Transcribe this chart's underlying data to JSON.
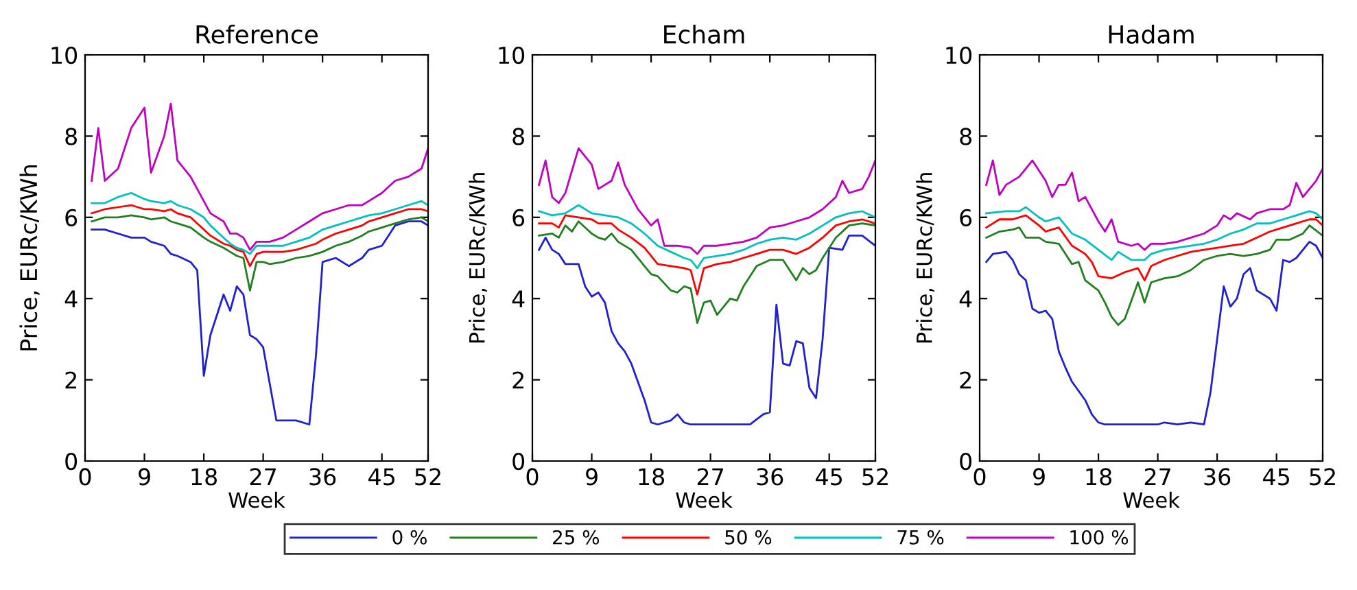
{
  "chart_data": [
    {
      "type": "line",
      "title": "Reference",
      "xlabel": "Week",
      "ylabel": "Price, EURc/KWh",
      "xlim": [
        0,
        52
      ],
      "xticks": [
        0,
        9,
        18,
        27,
        36,
        45,
        52
      ],
      "ylim": [
        0,
        10
      ],
      "yticks": [
        0,
        2,
        4,
        6,
        8,
        10
      ],
      "grid": false,
      "legend": "bottom",
      "series": [
        {
          "name": "0 %",
          "color": "#2020d0",
          "x": [
            1,
            3,
            5,
            7,
            9,
            10,
            12,
            13,
            14,
            16,
            17,
            18,
            19,
            21,
            22,
            23,
            24,
            25,
            26,
            27,
            28,
            29,
            30,
            32,
            34,
            35,
            36,
            38,
            40,
            42,
            43,
            45,
            47,
            49,
            51,
            52
          ],
          "values": [
            5.7,
            5.7,
            5.6,
            5.5,
            5.5,
            5.4,
            5.3,
            5.1,
            5.05,
            4.9,
            4.7,
            2.1,
            3.1,
            4.1,
            3.7,
            4.3,
            4.1,
            3.1,
            3.0,
            2.8,
            1.9,
            1.0,
            1.0,
            1.0,
            0.9,
            2.6,
            4.9,
            5.0,
            4.8,
            5.0,
            5.2,
            5.3,
            5.8,
            5.9,
            5.9,
            5.8
          ]
        },
        {
          "name": "25 %",
          "color": "#208020",
          "x": [
            1,
            3,
            5,
            7,
            9,
            10,
            12,
            13,
            14,
            16,
            18,
            19,
            21,
            22,
            23,
            24,
            25,
            26,
            27,
            28,
            30,
            32,
            34,
            35,
            36,
            38,
            40,
            42,
            43,
            45,
            47,
            49,
            51,
            52
          ],
          "values": [
            5.9,
            6.0,
            6.0,
            6.05,
            6.0,
            5.95,
            6.0,
            5.9,
            5.85,
            5.75,
            5.5,
            5.4,
            5.25,
            5.15,
            5.05,
            5.0,
            4.2,
            4.9,
            4.9,
            4.85,
            4.9,
            5.0,
            5.05,
            5.1,
            5.15,
            5.3,
            5.4,
            5.55,
            5.65,
            5.75,
            5.85,
            5.95,
            6.0,
            5.9
          ]
        },
        {
          "name": "50 %",
          "color": "#ff0000",
          "x": [
            1,
            3,
            5,
            7,
            9,
            10,
            12,
            13,
            14,
            16,
            18,
            19,
            21,
            22,
            23,
            24,
            25,
            26,
            27,
            28,
            30,
            32,
            34,
            35,
            36,
            38,
            40,
            42,
            43,
            45,
            47,
            49,
            51,
            52
          ],
          "values": [
            6.1,
            6.2,
            6.25,
            6.3,
            6.2,
            6.2,
            6.15,
            6.2,
            6.1,
            6.0,
            5.7,
            5.55,
            5.35,
            5.3,
            5.2,
            5.15,
            4.8,
            5.1,
            5.15,
            5.15,
            5.15,
            5.2,
            5.3,
            5.35,
            5.45,
            5.6,
            5.7,
            5.8,
            5.9,
            6.0,
            6.1,
            6.2,
            6.2,
            6.15
          ]
        },
        {
          "name": "75 %",
          "color": "#00c0c0",
          "x": [
            1,
            3,
            5,
            7,
            9,
            10,
            12,
            13,
            14,
            16,
            18,
            19,
            21,
            22,
            23,
            24,
            25,
            26,
            27,
            28,
            30,
            32,
            34,
            35,
            36,
            38,
            40,
            42,
            43,
            45,
            47,
            49,
            51,
            52
          ],
          "values": [
            6.35,
            6.35,
            6.5,
            6.6,
            6.45,
            6.4,
            6.35,
            6.4,
            6.3,
            6.2,
            6.0,
            5.8,
            5.5,
            5.35,
            5.25,
            5.2,
            5.1,
            5.3,
            5.3,
            5.3,
            5.3,
            5.4,
            5.5,
            5.6,
            5.7,
            5.8,
            5.9,
            6.0,
            6.05,
            6.1,
            6.2,
            6.3,
            6.4,
            6.3
          ]
        },
        {
          "name": "100 %",
          "color": "#c000c0",
          "x": [
            1,
            2,
            3,
            5,
            7,
            9,
            10,
            12,
            13,
            14,
            16,
            18,
            19,
            21,
            22,
            23,
            24,
            25,
            26,
            27,
            28,
            30,
            32,
            34,
            35,
            36,
            38,
            40,
            42,
            43,
            45,
            47,
            49,
            51,
            52
          ],
          "values": [
            6.9,
            8.2,
            6.9,
            7.2,
            8.2,
            8.7,
            7.1,
            8.0,
            8.8,
            7.4,
            7.0,
            6.4,
            6.1,
            5.9,
            5.6,
            5.6,
            5.5,
            5.2,
            5.4,
            5.4,
            5.4,
            5.5,
            5.7,
            5.9,
            6.0,
            6.1,
            6.2,
            6.3,
            6.3,
            6.4,
            6.6,
            6.9,
            7.0,
            7.2,
            7.7
          ]
        }
      ]
    },
    {
      "type": "line",
      "title": "Echam",
      "xlabel": "Week",
      "ylabel": "Price, EURc/KWh",
      "xlim": [
        0,
        52
      ],
      "xticks": [
        0,
        9,
        18,
        27,
        36,
        45,
        52
      ],
      "ylim": [
        0,
        10
      ],
      "yticks": [
        0,
        2,
        4,
        6,
        8,
        10
      ],
      "grid": false,
      "legend": "bottom",
      "series": [
        {
          "name": "0 %",
          "color": "#2020d0",
          "x": [
            1,
            2,
            3,
            4,
            5,
            7,
            8,
            9,
            10,
            11,
            12,
            13,
            14,
            15,
            17,
            18,
            19,
            20,
            21,
            22,
            23,
            24,
            27,
            30,
            32,
            33,
            35,
            36,
            37,
            38,
            39,
            40,
            41,
            42,
            43,
            44,
            45,
            47,
            48,
            50,
            52
          ],
          "values": [
            5.2,
            5.5,
            5.2,
            5.1,
            4.85,
            4.85,
            4.3,
            4.05,
            4.15,
            3.9,
            3.2,
            2.9,
            2.7,
            2.4,
            1.5,
            0.95,
            0.9,
            0.95,
            1.0,
            1.15,
            0.95,
            0.9,
            0.9,
            0.9,
            0.9,
            0.9,
            1.15,
            1.2,
            3.85,
            2.4,
            2.35,
            2.95,
            2.9,
            1.8,
            1.55,
            3.0,
            5.25,
            5.2,
            5.55,
            5.55,
            5.3
          ]
        },
        {
          "name": "25 %",
          "color": "#208020",
          "x": [
            1,
            3,
            4,
            5,
            6,
            7,
            9,
            10,
            11,
            12,
            13,
            15,
            17,
            18,
            19,
            21,
            22,
            23,
            24,
            25,
            26,
            27,
            28,
            30,
            31,
            32,
            34,
            36,
            38,
            39,
            40,
            41,
            42,
            43,
            44,
            46,
            48,
            50,
            52
          ],
          "values": [
            5.55,
            5.6,
            5.5,
            5.8,
            5.65,
            5.9,
            5.6,
            5.5,
            5.45,
            5.6,
            5.4,
            5.2,
            4.8,
            4.6,
            4.55,
            4.2,
            4.15,
            4.3,
            4.25,
            3.4,
            3.9,
            3.95,
            3.6,
            4.0,
            3.95,
            4.3,
            4.8,
            4.95,
            4.95,
            4.7,
            4.45,
            4.75,
            4.6,
            4.7,
            5.0,
            5.5,
            5.8,
            5.85,
            5.8
          ]
        },
        {
          "name": "50 %",
          "color": "#ff0000",
          "x": [
            1,
            3,
            4,
            5,
            7,
            9,
            10,
            12,
            13,
            15,
            17,
            19,
            21,
            23,
            24,
            25,
            26,
            28,
            30,
            32,
            34,
            36,
            38,
            40,
            42,
            44,
            46,
            48,
            50,
            52
          ],
          "values": [
            5.85,
            5.85,
            5.75,
            6.05,
            6.0,
            5.95,
            5.85,
            5.85,
            5.7,
            5.5,
            5.25,
            4.85,
            4.8,
            4.75,
            4.7,
            4.1,
            4.75,
            4.85,
            4.9,
            5.0,
            5.1,
            5.2,
            5.2,
            5.1,
            5.25,
            5.5,
            5.8,
            5.9,
            5.95,
            5.85
          ]
        },
        {
          "name": "75 %",
          "color": "#00c0c0",
          "x": [
            1,
            3,
            5,
            7,
            9,
            11,
            13,
            15,
            17,
            19,
            21,
            23,
            24,
            25,
            26,
            28,
            30,
            32,
            34,
            36,
            38,
            40,
            42,
            44,
            46,
            48,
            50,
            52
          ],
          "values": [
            6.15,
            6.05,
            6.1,
            6.3,
            6.1,
            6.05,
            6.0,
            5.85,
            5.6,
            5.3,
            5.15,
            5.0,
            4.95,
            4.75,
            5.0,
            5.05,
            5.1,
            5.2,
            5.35,
            5.45,
            5.5,
            5.45,
            5.6,
            5.8,
            6.0,
            6.1,
            6.15,
            6.0
          ]
        },
        {
          "name": "100 %",
          "color": "#c000c0",
          "x": [
            1,
            2,
            3,
            4,
            5,
            7,
            9,
            10,
            12,
            13,
            14,
            16,
            18,
            19,
            20,
            22,
            24,
            25,
            26,
            28,
            30,
            32,
            34,
            36,
            38,
            40,
            42,
            44,
            46,
            47,
            48,
            50,
            51,
            52
          ],
          "values": [
            6.8,
            7.4,
            6.5,
            6.35,
            6.6,
            7.7,
            7.3,
            6.7,
            6.9,
            7.35,
            6.8,
            6.2,
            5.8,
            5.95,
            5.3,
            5.3,
            5.25,
            5.1,
            5.3,
            5.3,
            5.35,
            5.4,
            5.5,
            5.75,
            5.8,
            5.9,
            6.0,
            6.2,
            6.5,
            6.9,
            6.6,
            6.7,
            7.0,
            7.4
          ]
        }
      ]
    },
    {
      "type": "line",
      "title": "Hadam",
      "xlabel": "Week",
      "ylabel": "Price, EURc/KWh",
      "xlim": [
        0,
        52
      ],
      "xticks": [
        0,
        9,
        18,
        27,
        36,
        45,
        52
      ],
      "ylim": [
        0,
        10
      ],
      "yticks": [
        0,
        2,
        4,
        6,
        8,
        10
      ],
      "grid": false,
      "legend": "bottom",
      "series": [
        {
          "name": "0 %",
          "color": "#2020d0",
          "x": [
            1,
            2,
            4,
            5,
            6,
            7,
            8,
            9,
            10,
            11,
            12,
            13,
            14,
            16,
            17,
            18,
            19,
            22,
            25,
            27,
            28,
            30,
            32,
            34,
            35,
            36,
            37,
            38,
            39,
            40,
            41,
            42,
            44,
            45,
            46,
            47,
            48,
            50,
            51,
            52
          ],
          "values": [
            4.9,
            5.1,
            5.15,
            4.95,
            4.6,
            4.45,
            3.75,
            3.65,
            3.7,
            3.5,
            2.7,
            2.3,
            1.95,
            1.5,
            1.15,
            0.95,
            0.9,
            0.9,
            0.9,
            0.9,
            0.95,
            0.9,
            0.95,
            0.9,
            1.7,
            3.0,
            4.3,
            3.8,
            4.0,
            4.6,
            4.75,
            4.2,
            4.0,
            3.7,
            4.95,
            4.9,
            5.0,
            5.4,
            5.3,
            5.0
          ]
        },
        {
          "name": "25 %",
          "color": "#208020",
          "x": [
            1,
            3,
            5,
            6,
            7,
            9,
            10,
            12,
            14,
            15,
            16,
            18,
            19,
            20,
            21,
            22,
            23,
            24,
            25,
            26,
            28,
            30,
            32,
            34,
            36,
            38,
            40,
            42,
            44,
            45,
            47,
            49,
            50,
            52
          ],
          "values": [
            5.5,
            5.65,
            5.7,
            5.75,
            5.5,
            5.5,
            5.4,
            5.35,
            4.85,
            4.9,
            4.45,
            4.2,
            3.9,
            3.55,
            3.35,
            3.5,
            3.95,
            4.4,
            3.9,
            4.4,
            4.5,
            4.55,
            4.7,
            4.95,
            5.05,
            5.1,
            5.05,
            5.1,
            5.2,
            5.45,
            5.45,
            5.6,
            5.8,
            5.55
          ]
        },
        {
          "name": "50 %",
          "color": "#ff0000",
          "x": [
            1,
            3,
            5,
            7,
            9,
            10,
            12,
            14,
            16,
            17,
            18,
            20,
            22,
            24,
            25,
            26,
            28,
            30,
            32,
            34,
            36,
            38,
            40,
            42,
            44,
            46,
            48,
            50,
            51,
            52
          ],
          "values": [
            5.75,
            5.95,
            5.95,
            6.05,
            5.8,
            5.65,
            5.75,
            5.3,
            5.1,
            4.9,
            4.55,
            4.5,
            4.65,
            4.75,
            4.45,
            4.8,
            4.95,
            5.05,
            5.15,
            5.2,
            5.25,
            5.3,
            5.35,
            5.5,
            5.65,
            5.75,
            5.85,
            5.95,
            5.95,
            5.8
          ]
        },
        {
          "name": "75 %",
          "color": "#00c0c0",
          "x": [
            1,
            4,
            6,
            7,
            9,
            10,
            12,
            14,
            16,
            18,
            20,
            21,
            23,
            25,
            26,
            28,
            30,
            32,
            34,
            36,
            38,
            40,
            42,
            44,
            46,
            48,
            50,
            51,
            52
          ],
          "values": [
            6.1,
            6.15,
            6.15,
            6.25,
            6.0,
            5.9,
            6.0,
            5.6,
            5.45,
            5.2,
            4.95,
            5.15,
            4.95,
            4.95,
            5.1,
            5.2,
            5.25,
            5.3,
            5.35,
            5.45,
            5.6,
            5.7,
            5.85,
            5.85,
            5.95,
            6.05,
            6.15,
            6.1,
            5.95
          ]
        },
        {
          "name": "100 %",
          "color": "#c000c0",
          "x": [
            1,
            2,
            3,
            4,
            6,
            8,
            10,
            11,
            12,
            13,
            14,
            15,
            16,
            18,
            19,
            20,
            21,
            23,
            24,
            25,
            26,
            28,
            30,
            32,
            34,
            36,
            37,
            38,
            39,
            41,
            42,
            44,
            46,
            47,
            48,
            49,
            51,
            52
          ],
          "values": [
            6.8,
            7.4,
            6.55,
            6.8,
            7.0,
            7.4,
            6.9,
            6.5,
            6.8,
            6.8,
            7.1,
            6.4,
            6.5,
            5.9,
            5.65,
            5.95,
            5.4,
            5.3,
            5.35,
            5.2,
            5.35,
            5.35,
            5.4,
            5.5,
            5.6,
            5.8,
            6.05,
            5.95,
            6.1,
            5.95,
            6.1,
            6.2,
            6.2,
            6.3,
            6.85,
            6.5,
            6.9,
            7.2
          ]
        }
      ]
    }
  ]
}
